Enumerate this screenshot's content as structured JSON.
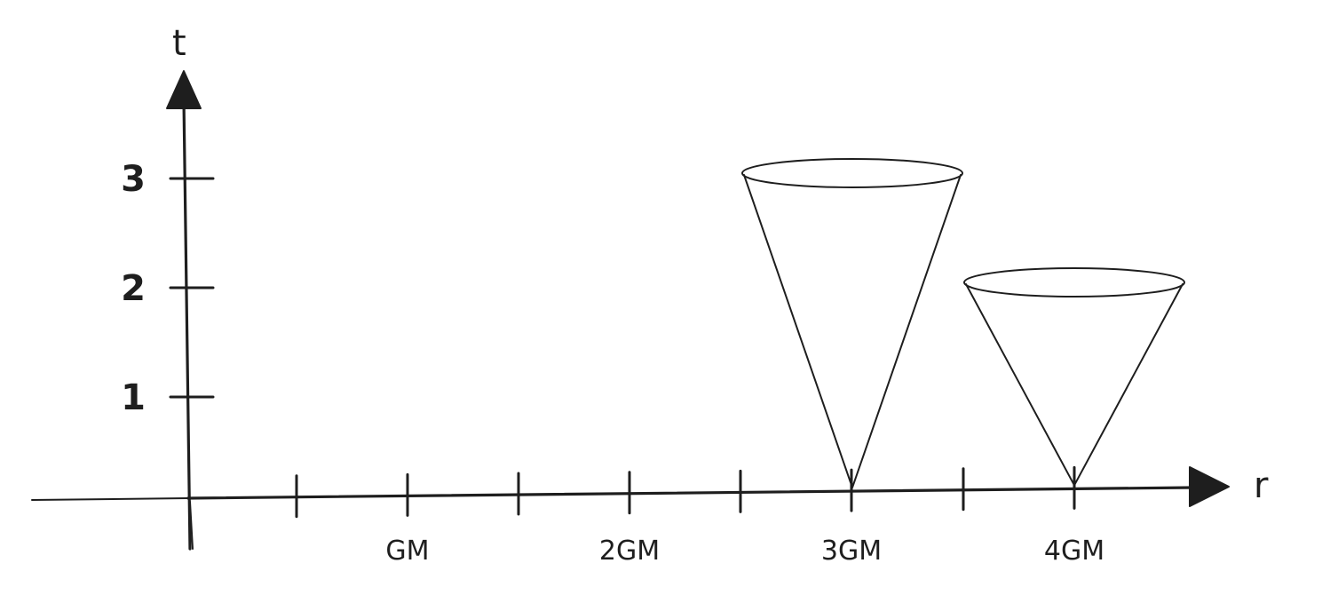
{
  "axes": {
    "x_label": "r",
    "y_label": "t"
  },
  "y_ticks": [
    {
      "value": 1,
      "label": "1"
    },
    {
      "value": 2,
      "label": "2"
    },
    {
      "value": 3,
      "label": "3"
    }
  ],
  "x_ticks": [
    {
      "value": 0.5,
      "label": ""
    },
    {
      "value": 1,
      "label": "GM"
    },
    {
      "value": 1.5,
      "label": ""
    },
    {
      "value": 2,
      "label": "2GM"
    },
    {
      "value": 2.5,
      "label": ""
    },
    {
      "value": 3,
      "label": "3GM"
    },
    {
      "value": 3.5,
      "label": ""
    },
    {
      "value": 4,
      "label": "4GM"
    }
  ],
  "light_cones": [
    {
      "apex_r": 3,
      "top_t": 3
    },
    {
      "apex_r": 4,
      "top_t": 2
    }
  ]
}
